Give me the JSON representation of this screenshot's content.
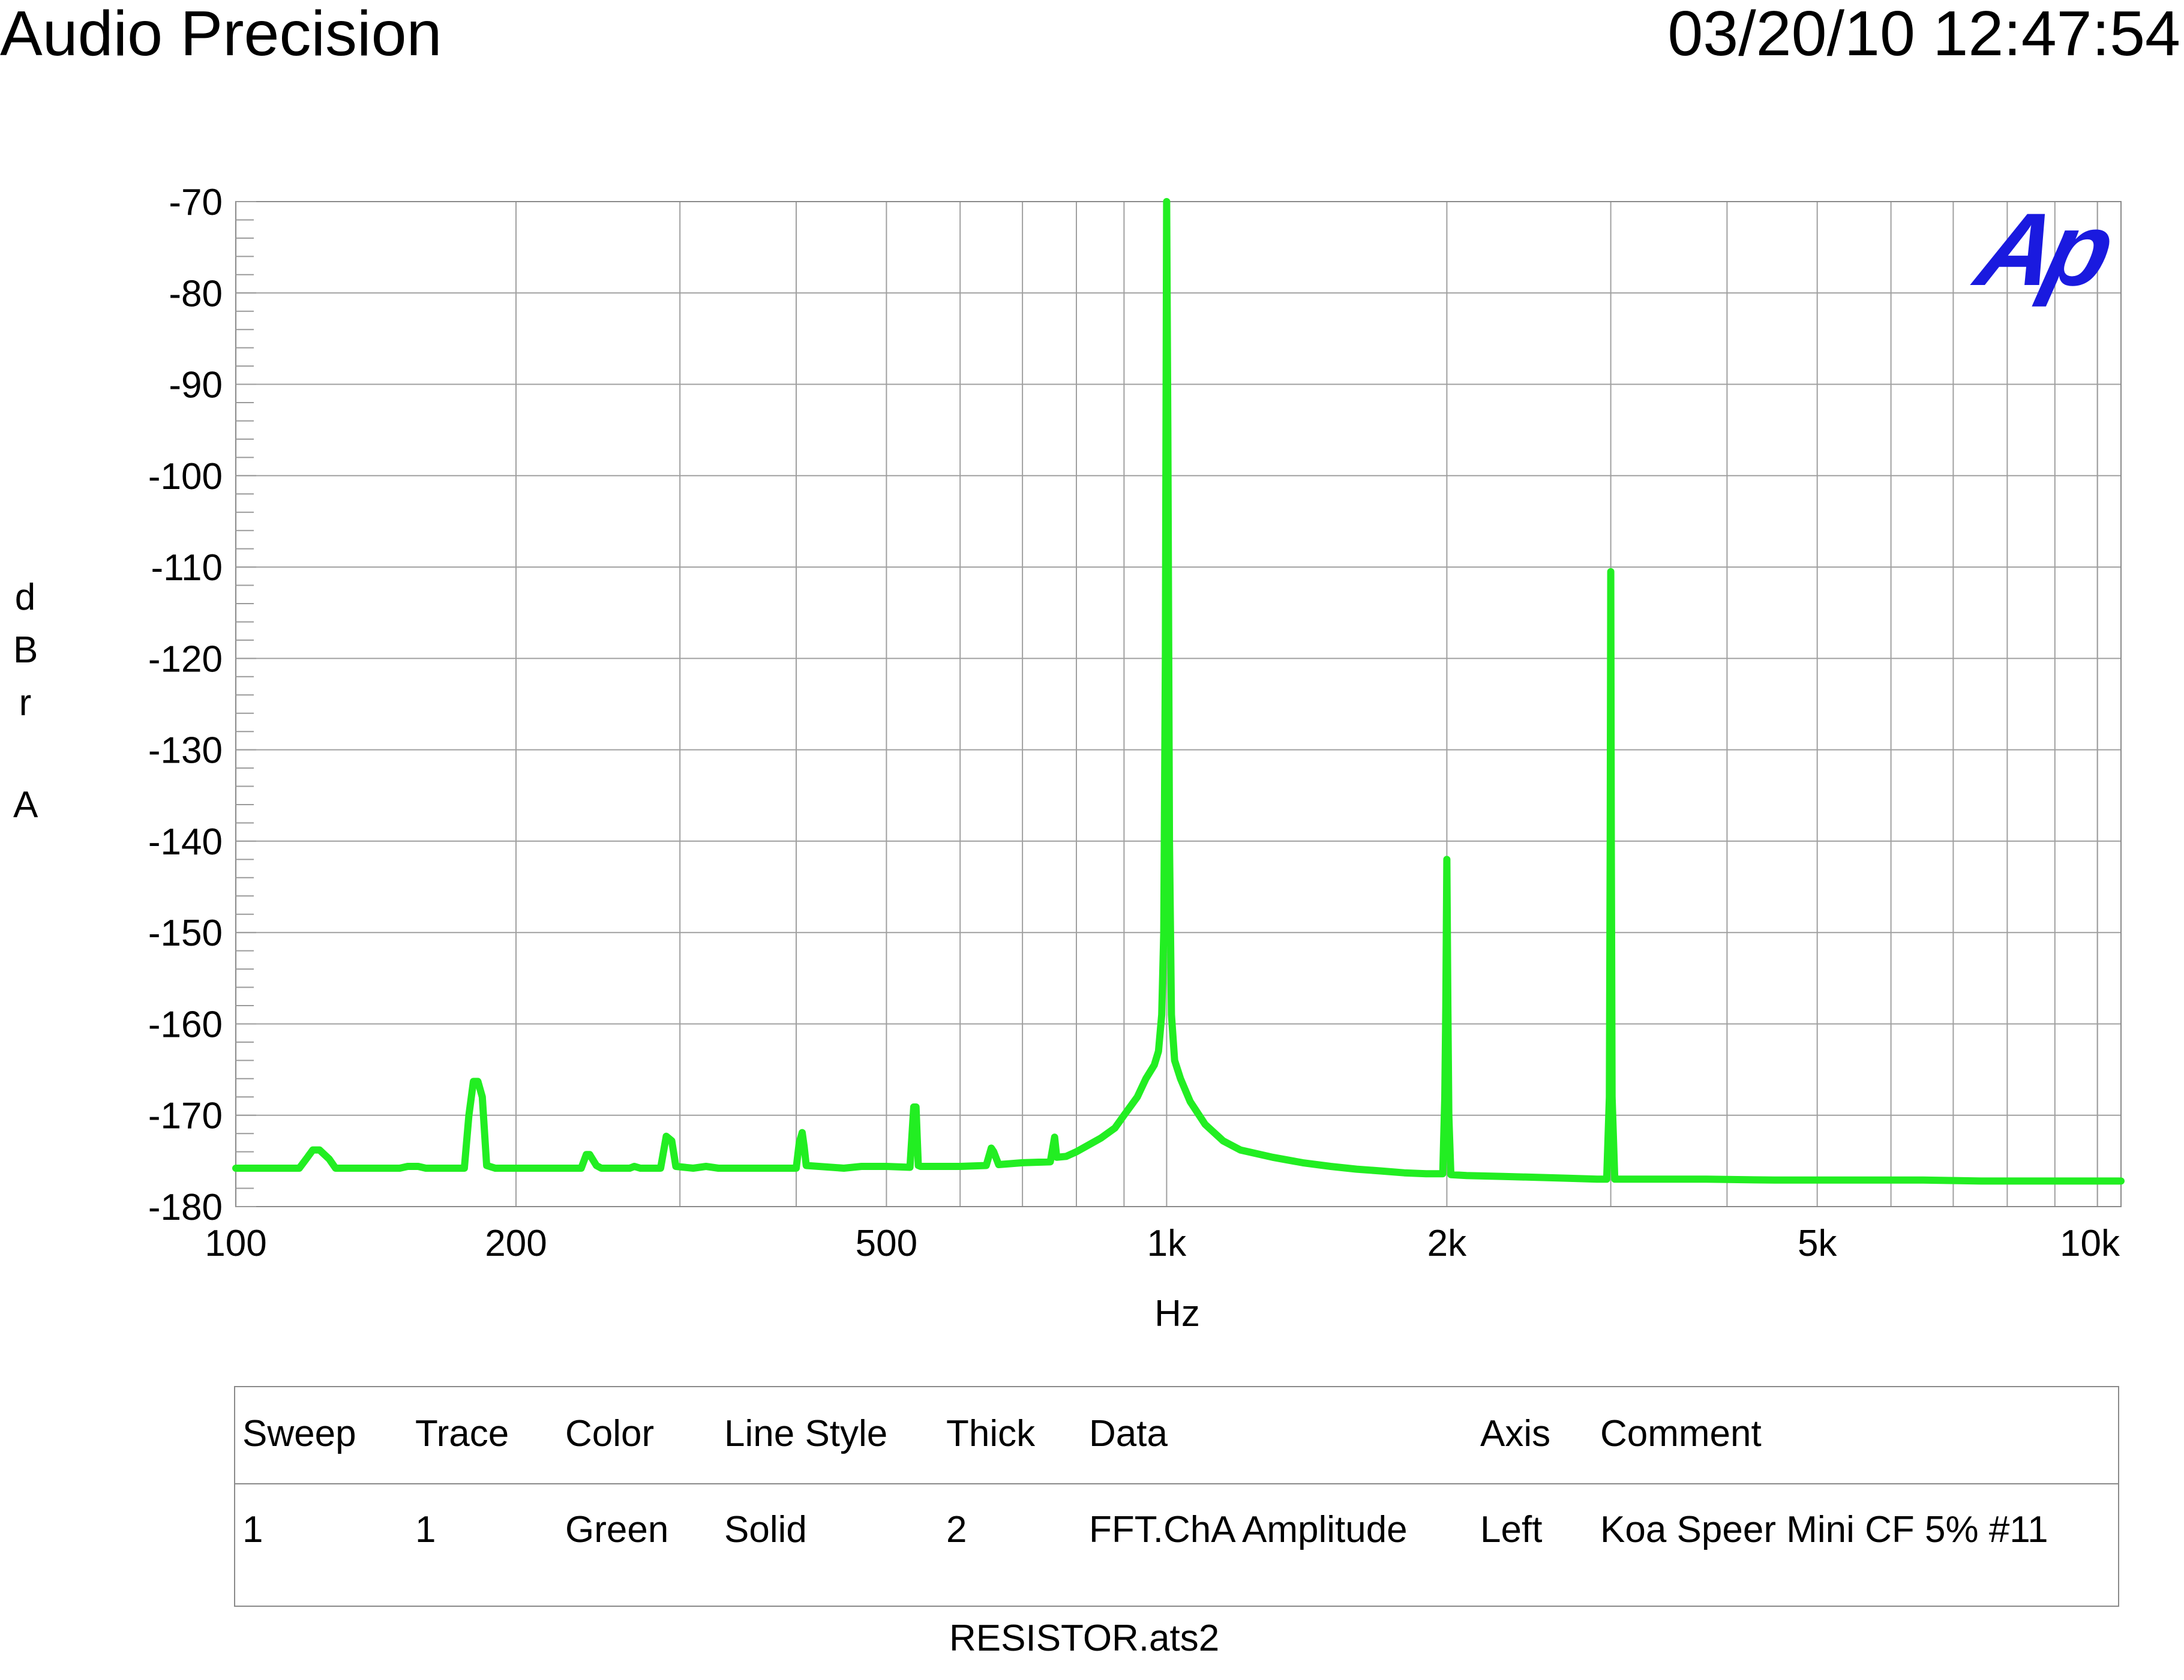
{
  "header": {
    "brand": "Audio Precision",
    "timestamp": "03/20/10 12:47:54"
  },
  "logo": {
    "text": "Ap",
    "color": "#1a1adf"
  },
  "chart_data": {
    "type": "line",
    "xlabel": "Hz",
    "ylabel": "dBr A",
    "xscale": "log",
    "xlim": [
      100,
      10600
    ],
    "ylim": [
      -180,
      -70
    ],
    "xticks": [
      {
        "value": 100,
        "label": "100"
      },
      {
        "value": 200,
        "label": "200"
      },
      {
        "value": 500,
        "label": "500"
      },
      {
        "value": 1000,
        "label": "1k"
      },
      {
        "value": 2000,
        "label": "2k"
      },
      {
        "value": 5000,
        "label": "5k"
      },
      {
        "value": 10000,
        "label": "10k"
      }
    ],
    "yticks": [
      -70,
      -80,
      -90,
      -100,
      -110,
      -120,
      -130,
      -140,
      -150,
      -160,
      -170,
      -180
    ],
    "grid": true,
    "line_color": "#22ee22",
    "series": [
      {
        "name": "FFT.ChA Amplitude",
        "x": [
          100,
          117,
          119,
          121,
          123,
          126,
          128,
          150,
          153,
          157,
          160,
          176,
          178,
          180,
          182,
          184,
          186,
          190,
          235,
          238,
          240,
          244,
          247,
          265,
          268,
          272,
          286,
          290,
          294,
          297,
          310,
          320,
          330,
          400,
          403,
          406,
          408,
          410,
          450,
          470,
          500,
          530,
          535,
          538,
          541,
          544,
          560,
          600,
          640,
          648,
          652,
          660,
          700,
          750,
          758,
          762,
          780,
          800,
          850,
          880,
          900,
          930,
          950,
          970,
          980,
          988,
          993,
          997,
          1000,
          1003,
          1007,
          1012,
          1020,
          1035,
          1060,
          1100,
          1150,
          1200,
          1300,
          1400,
          1500,
          1600,
          1700,
          1800,
          1900,
          1980,
          1990,
          1995,
          2000,
          2005,
          2010,
          2020,
          2100,
          2300,
          2500,
          2700,
          2900,
          2970,
          2990,
          2996,
          3000,
          3004,
          3010,
          3030,
          3300,
          3800,
          4500,
          5500,
          6500,
          7500,
          9000,
          10600
        ],
        "y": [
          -175.8,
          -175.8,
          -174.8,
          -173.8,
          -173.8,
          -174.8,
          -175.8,
          -175.8,
          -175.6,
          -175.6,
          -175.8,
          -175.8,
          -170.0,
          -166.3,
          -166.3,
          -168.0,
          -175.5,
          -175.8,
          -175.8,
          -174.3,
          -174.3,
          -175.5,
          -175.8,
          -175.8,
          -175.6,
          -175.8,
          -175.8,
          -172.3,
          -172.8,
          -175.6,
          -175.8,
          -175.6,
          -175.8,
          -175.8,
          -173.0,
          -171.9,
          -173.5,
          -175.5,
          -175.8,
          -175.6,
          -175.6,
          -175.7,
          -169.1,
          -169.1,
          -175.5,
          -175.6,
          -175.6,
          -175.6,
          -175.5,
          -173.6,
          -174.0,
          -175.4,
          -175.2,
          -175.1,
          -172.4,
          -174.6,
          -174.5,
          -174.0,
          -172.5,
          -171.4,
          -170.0,
          -168.0,
          -166.0,
          -164.5,
          -163.0,
          -159.0,
          -150.0,
          -120.0,
          -70.0,
          -95.0,
          -140.0,
          -159.0,
          -164.0,
          -166.0,
          -168.5,
          -171.0,
          -172.8,
          -173.8,
          -174.6,
          -175.2,
          -175.6,
          -175.9,
          -176.1,
          -176.3,
          -176.4,
          -176.4,
          -168.0,
          -158.0,
          -142.0,
          -158.0,
          -170.0,
          -176.5,
          -176.6,
          -176.7,
          -176.8,
          -176.9,
          -177.0,
          -177.0,
          -168.0,
          -140.0,
          -110.5,
          -140.0,
          -168.0,
          -177.0,
          -177.0,
          -177.0,
          -177.1,
          -177.1,
          -177.1,
          -177.2,
          -177.2,
          -177.2
        ]
      }
    ]
  },
  "legend_table": {
    "columns": [
      "Sweep",
      "Trace",
      "Color",
      "Line Style",
      "Thick",
      "Data",
      "Axis",
      "Comment"
    ],
    "rows": [
      [
        "1",
        "1",
        "Green",
        "Solid",
        "2",
        "FFT.ChA Amplitude",
        "Left",
        "Koa Speer Mini CF 5% #11"
      ]
    ]
  },
  "footer": {
    "filename": "RESISTOR.ats2"
  }
}
